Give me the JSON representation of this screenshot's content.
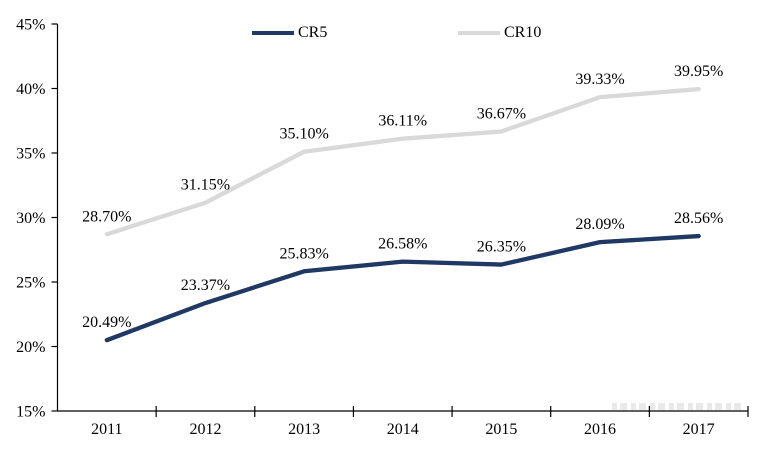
{
  "chart_data": {
    "type": "line",
    "title": "",
    "xlabel": "",
    "ylabel": "",
    "categories": [
      "2011",
      "2012",
      "2013",
      "2014",
      "2015",
      "2016",
      "2017"
    ],
    "series": [
      {
        "name": "CR5",
        "color": "#1f3864",
        "values": [
          20.49,
          23.37,
          25.83,
          26.58,
          26.35,
          28.09,
          28.56
        ],
        "point_labels": [
          "20.49%",
          "23.37%",
          "25.83%",
          "26.58%",
          "26.35%",
          "28.09%",
          "28.56%"
        ]
      },
      {
        "name": "CR10",
        "color": "#d9d9d9",
        "values": [
          28.7,
          31.15,
          35.1,
          36.11,
          36.67,
          39.33,
          39.95
        ],
        "point_labels": [
          "28.70%",
          "31.15%",
          "35.10%",
          "36.11%",
          "36.67%",
          "39.33%",
          "39.95%"
        ]
      }
    ],
    "ylim": [
      15,
      45
    ],
    "ytick_step": 5,
    "ytick_labels": [
      "15%",
      "20%",
      "25%",
      "30%",
      "35%",
      "40%",
      "45%"
    ],
    "grid": false,
    "legend_position": "top",
    "markers": false,
    "axis_color": "#000000",
    "text_color": "#000000"
  }
}
